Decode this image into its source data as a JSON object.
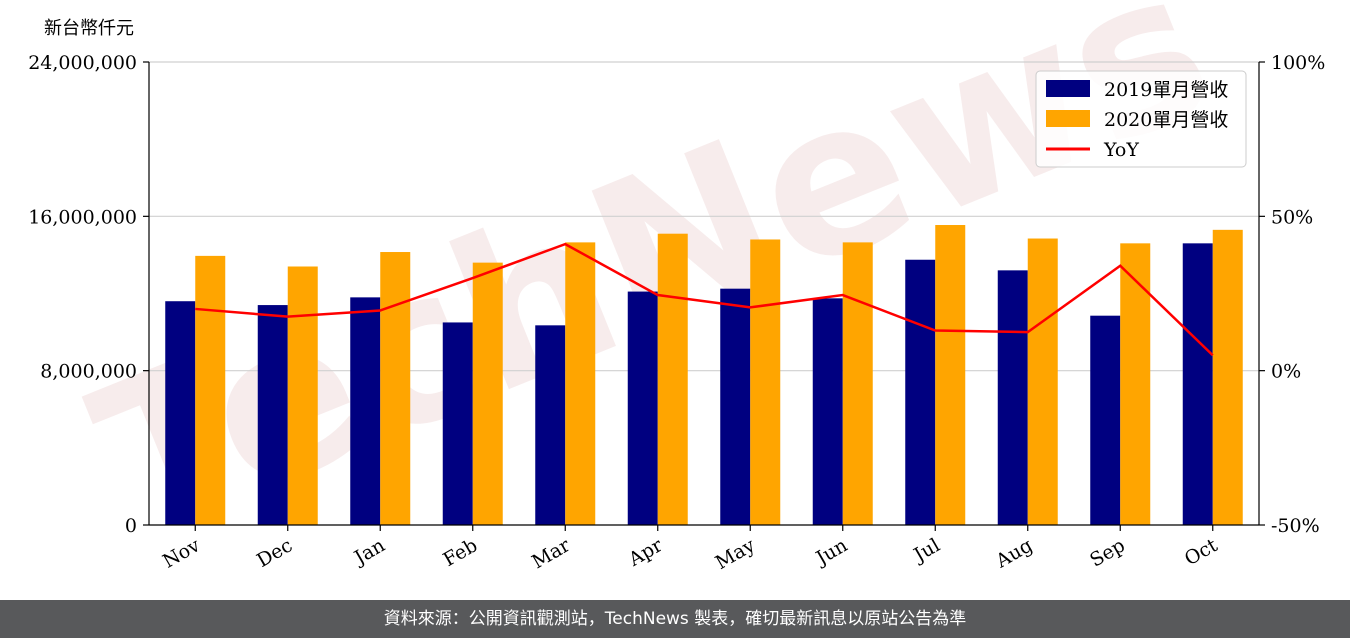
{
  "y_unit_label": "新台幣仟元",
  "footer_text": "資料來源：公開資訊觀測站，TechNews 製表，確切最新訊息以原站公告為準",
  "watermark_text": "TechNews",
  "chart_data": {
    "type": "bar",
    "categories": [
      "Nov",
      "Dec",
      "Jan",
      "Feb",
      "Mar",
      "Apr",
      "May",
      "Jun",
      "Jul",
      "Aug",
      "Sep",
      "Oct"
    ],
    "series": [
      {
        "name": "2019單月營收",
        "kind": "bar",
        "axis": "left",
        "color": "#000080",
        "values": [
          11600000,
          11400000,
          11800000,
          10500000,
          10350000,
          12100000,
          12250000,
          11750000,
          13750000,
          13200000,
          10850000,
          14600000
        ]
      },
      {
        "name": "2020單月營收",
        "kind": "bar",
        "axis": "left",
        "color": "#FFA500",
        "values": [
          13950000,
          13400000,
          14150000,
          13600000,
          14650000,
          15100000,
          14800000,
          14650000,
          15550000,
          14850000,
          14600000,
          15300000
        ]
      },
      {
        "name": "YoY",
        "kind": "line",
        "axis": "right",
        "color": "#FF0000",
        "values": [
          20.0,
          17.5,
          19.5,
          30.0,
          41.0,
          24.5,
          20.5,
          24.5,
          13.0,
          12.5,
          34.0,
          5.0
        ]
      }
    ],
    "y_left": {
      "ylim": [
        0,
        24000000
      ],
      "ticks": [
        0,
        8000000,
        16000000,
        24000000
      ],
      "tick_labels": [
        "0",
        "8,000,000",
        "16,000,000",
        "24,000,000"
      ]
    },
    "y_right": {
      "ylim": [
        -50,
        100
      ],
      "ticks": [
        -50,
        0,
        50,
        100
      ],
      "tick_labels": [
        "-50%",
        "0%",
        "50%",
        "100%"
      ]
    },
    "grid": "horizontal",
    "legend_position": "top-right"
  }
}
